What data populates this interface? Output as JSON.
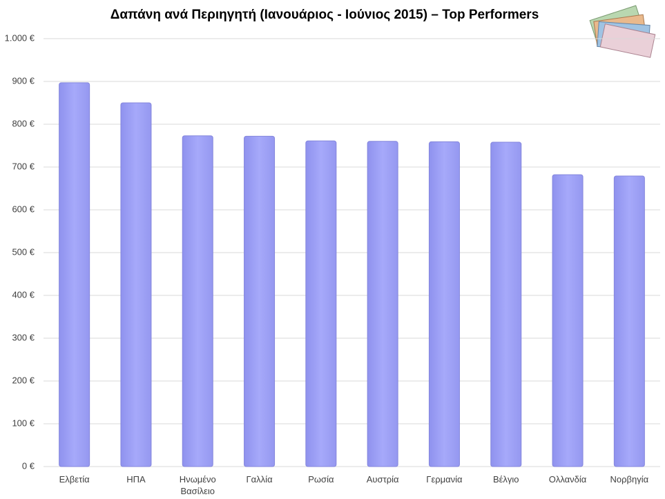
{
  "chart_data": {
    "type": "bar",
    "title": "Δαπάνη ανά Περιηγητή (Ιανουάριος - Ιούνιος 2015) – Top Performers",
    "categories": [
      "Ελβετία",
      "ΗΠΑ",
      "Ηνωμένο Βασίλειο",
      "Γαλλία",
      "Ρωσία",
      "Αυστρία",
      "Γερμανία",
      "Βέλγιο",
      "Ολλανδία",
      "Νορβηγία"
    ],
    "values": [
      897,
      850,
      773,
      772,
      761,
      760,
      759,
      758,
      682,
      679
    ],
    "color": "#a0a3f7",
    "ylim": [
      0,
      1000
    ],
    "yticks": [
      {
        "value": 0,
        "label": "0 €"
      },
      {
        "value": 100,
        "label": "100 €"
      },
      {
        "value": 200,
        "label": "200 €"
      },
      {
        "value": 300,
        "label": "300 €"
      },
      {
        "value": 400,
        "label": "400 €"
      },
      {
        "value": 500,
        "label": "500 €"
      },
      {
        "value": 600,
        "label": "600 €"
      },
      {
        "value": 700,
        "label": "700 €"
      },
      {
        "value": 800,
        "label": "800 €"
      },
      {
        "value": 900,
        "label": "900 €"
      },
      {
        "value": 1000,
        "label": "1.000 €"
      }
    ],
    "grid": true
  }
}
